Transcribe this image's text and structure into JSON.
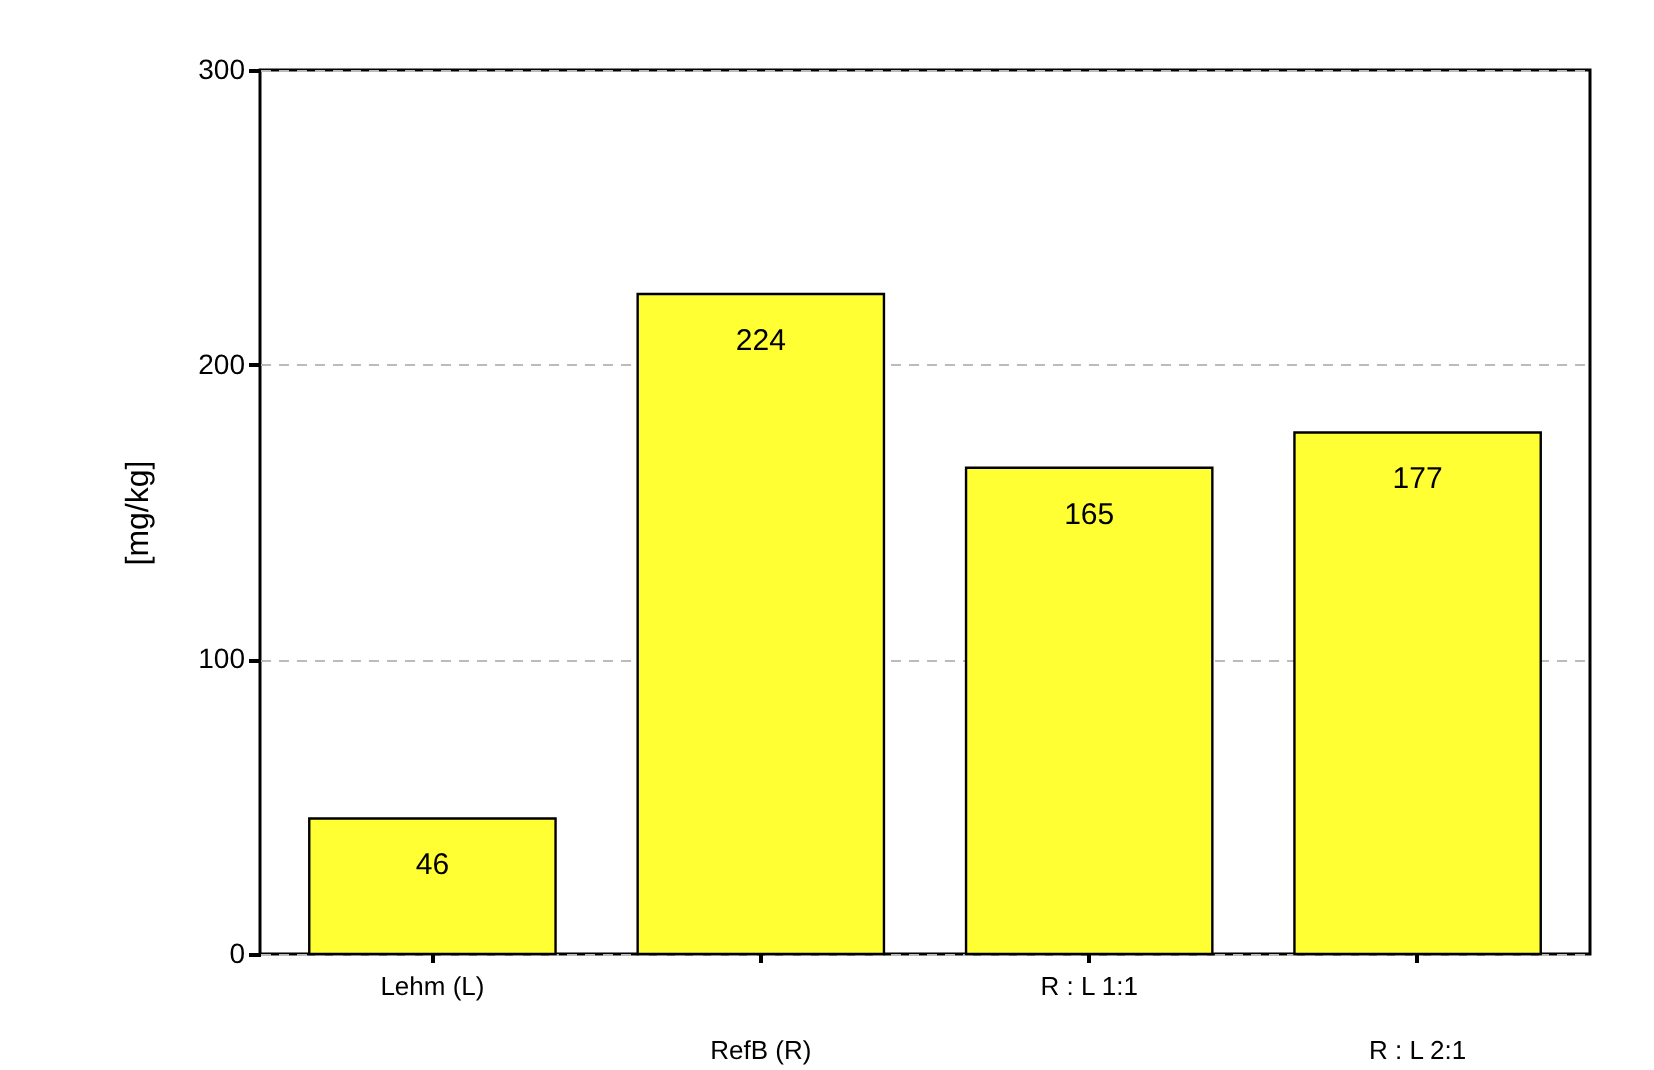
{
  "chart_data": {
    "type": "bar",
    "ylabel": "[mg/kg]",
    "categories": [
      "Lehm (L)",
      "RefB (R)",
      "R : L 1:1",
      "R : L 2:1"
    ],
    "values": [
      46,
      224,
      165,
      177
    ],
    "color": "#ffff33",
    "ylim": [
      0,
      300
    ],
    "yticks": [
      0,
      100,
      200,
      300
    ],
    "grid": "y",
    "data_labels": true
  }
}
